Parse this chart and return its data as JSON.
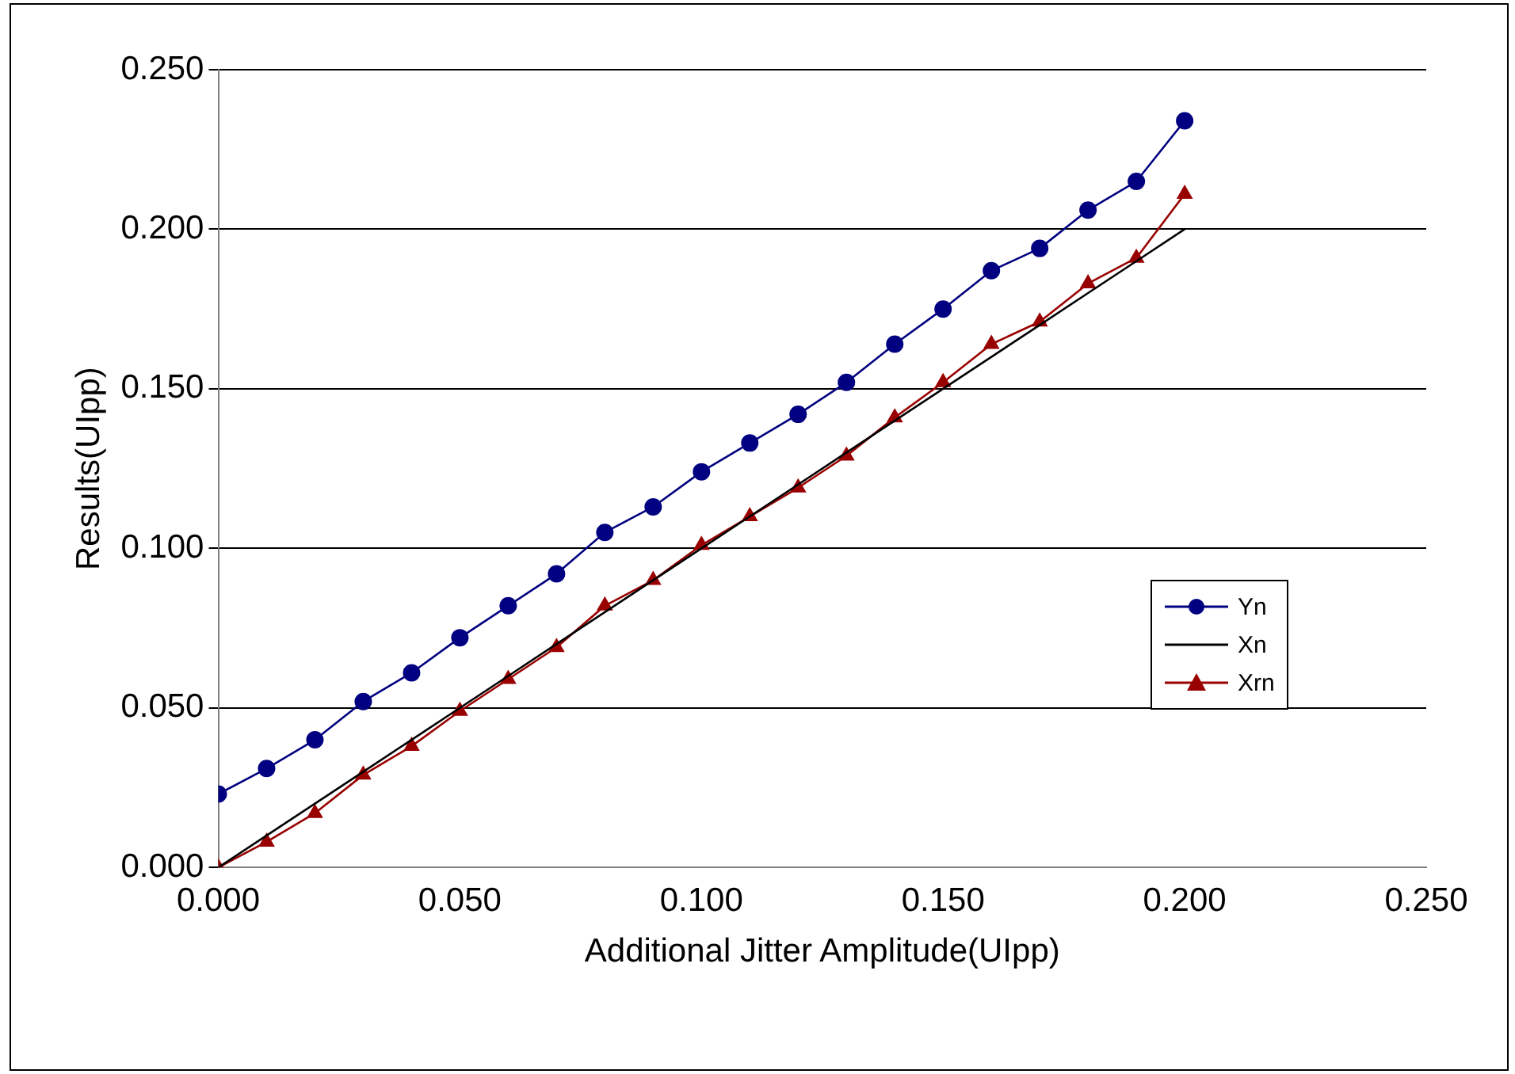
{
  "chart_data": {
    "type": "line",
    "xlabel": "Additional Jitter Amplitude(UIpp)",
    "ylabel": "Results(UIpp)",
    "x": [
      0,
      0.01,
      0.02,
      0.03,
      0.04,
      0.05,
      0.06,
      0.07,
      0.08,
      0.09,
      0.1,
      0.11,
      0.12,
      0.13,
      0.14,
      0.15,
      0.16,
      0.17,
      0.18,
      0.19,
      0.2
    ],
    "series": [
      {
        "name": "Yn",
        "color": "#000080",
        "marker": "circle",
        "values": [
          0.023,
          0.031,
          0.04,
          0.052,
          0.061,
          0.072,
          0.082,
          0.092,
          0.105,
          0.113,
          0.124,
          0.133,
          0.142,
          0.152,
          0.164,
          0.175,
          0.187,
          0.194,
          0.206,
          0.215,
          0.234
        ]
      },
      {
        "name": "Xn",
        "color": "#000000",
        "marker": "none",
        "values": [
          0,
          0.01,
          0.02,
          0.03,
          0.04,
          0.05,
          0.06,
          0.07,
          0.08,
          0.09,
          0.1,
          0.11,
          0.12,
          0.13,
          0.14,
          0.15,
          0.16,
          0.17,
          0.18,
          0.19,
          0.2
        ]
      },
      {
        "name": "Xrn",
        "color": "#990000",
        "marker": "triangle",
        "values": [
          0,
          0.008,
          0.017,
          0.029,
          0.038,
          0.049,
          0.059,
          0.069,
          0.082,
          0.09,
          0.101,
          0.11,
          0.119,
          0.129,
          0.141,
          0.152,
          0.164,
          0.171,
          0.183,
          0.191,
          0.211
        ]
      }
    ],
    "xlim": [
      0,
      0.25
    ],
    "xticks": [
      {
        "value": 0,
        "label": "0.000"
      },
      {
        "value": 0.05,
        "label": "0.050"
      },
      {
        "value": 0.1,
        "label": "0.100"
      },
      {
        "value": 0.15,
        "label": "0.150"
      },
      {
        "value": 0.2,
        "label": "0.200"
      },
      {
        "value": 0.25,
        "label": "0.250"
      }
    ],
    "ylim": [
      0,
      0.25
    ],
    "yticks": [
      {
        "value": 0,
        "label": "0.000"
      },
      {
        "value": 0.05,
        "label": "0.050"
      },
      {
        "value": 0.1,
        "label": "0.100"
      },
      {
        "value": 0.15,
        "label": "0.150"
      },
      {
        "value": 0.2,
        "label": "0.200"
      },
      {
        "value": 0.25,
        "label": "0.250"
      }
    ],
    "grid": "y",
    "legend": "right",
    "line_style": "solid"
  }
}
